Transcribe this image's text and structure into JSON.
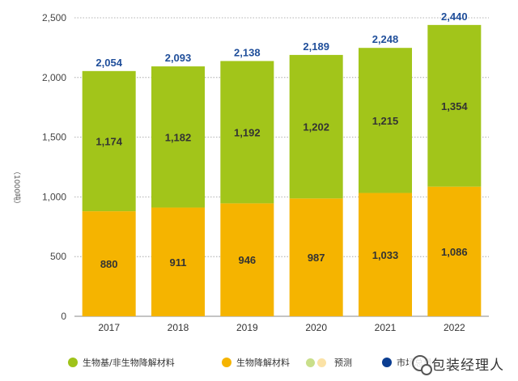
{
  "chart_data": {
    "type": "bar",
    "stacked": true,
    "categories": [
      "2017",
      "2018",
      "2019",
      "2020",
      "2021",
      "2022"
    ],
    "series": [
      {
        "name": "生物降解材料",
        "color": "#f5b400",
        "values": [
          880,
          911,
          946,
          987,
          1033,
          1086
        ],
        "labels": [
          "880",
          "911",
          "946",
          "987",
          "1,033",
          "1,086"
        ]
      },
      {
        "name": "生物基/非生物降解材料",
        "color": "#a2c51a",
        "values": [
          1174,
          1182,
          1192,
          1202,
          1215,
          1354
        ],
        "labels": [
          "1,174",
          "1,182",
          "1,192",
          "1,202",
          "1,215",
          "1,354"
        ]
      }
    ],
    "totals": [
      2054,
      2093,
      2138,
      2189,
      2248,
      2440
    ],
    "total_labels": [
      "2,054",
      "2,093",
      "2,138",
      "2,189",
      "2,248",
      "2,440"
    ],
    "ylim": [
      0,
      2500
    ],
    "yticks": [
      0,
      500,
      1000,
      1500,
      2000,
      2500
    ],
    "ytick_labels": [
      "0",
      "500",
      "1,000",
      "1,500",
      "2,000",
      "2,500"
    ],
    "ylabel": "（1000吨）",
    "grid": "dotted horizontal",
    "legend_position": "bottom",
    "total_color": "#1f4e9a"
  },
  "legend": {
    "items": [
      {
        "label": "生物基/非生物降解材料",
        "color": "#9fc31a"
      },
      {
        "label": "生物降解材料",
        "color": "#f5b400"
      },
      {
        "label": "预测",
        "colors": [
          "#c9df8a",
          "#fbe2a6"
        ]
      },
      {
        "label": "市场总量",
        "color": "#0b3d91"
      }
    ]
  },
  "watermark": {
    "text": "包装经理人"
  }
}
